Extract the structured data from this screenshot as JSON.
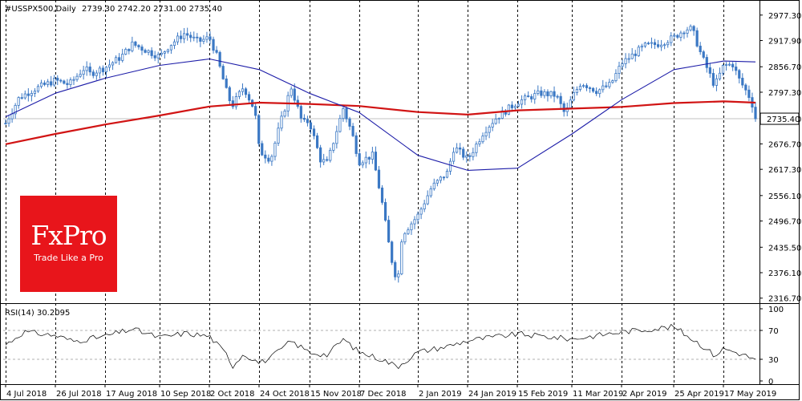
{
  "header": {
    "symbol": "#USSPX500,Daily",
    "ohlc": "2739.30 2742.20 2731.00 2735.40"
  },
  "logo": {
    "name": "FxPro",
    "tagline": "Trade Like a Pro"
  },
  "colors": {
    "candle": "#3b78c4",
    "ma_fast": "#1c1ca8",
    "ma_slow": "#d11414",
    "rsi": "#000000",
    "grid": "#000000",
    "logo": "#e8151b"
  },
  "chart_data": [
    {
      "type": "candlestick",
      "title": "#USSPX500,Daily",
      "ohlc_last": {
        "open": 2739.3,
        "high": 2742.2,
        "low": 2731.0,
        "close": 2735.4
      },
      "ylim": [
        2305,
        3005
      ],
      "y_ticks": [
        "2977.30",
        "2917.90",
        "2856.70",
        "2797.30",
        "2735.40",
        "2676.70",
        "2617.30",
        "2556.10",
        "2496.70",
        "2435.50",
        "2376.10",
        "2316.70"
      ],
      "current_price_label": "2735.40",
      "x_ticks": [
        "4 Jul 2018",
        "26 Jul 2018",
        "17 Aug 2018",
        "10 Sep 2018",
        "2 Oct 2018",
        "24 Oct 2018",
        "15 Nov 2018",
        "7 Dec 2018",
        "2 Jan 2019",
        "24 Jan 2019",
        "15 Feb 2019",
        "11 Mar 2019",
        "2 Apr 2019",
        "25 Apr 2019",
        "17 May 2019"
      ],
      "close_path": [
        [
          "4 Jul 2018",
          2725
        ],
        [
          "10 Jul 2018",
          2785
        ],
        [
          "17 Jul 2018",
          2805
        ],
        [
          "26 Jul 2018",
          2825
        ],
        [
          "1 Aug 2018",
          2815
        ],
        [
          "8 Aug 2018",
          2855
        ],
        [
          "10 Aug 2018",
          2840
        ],
        [
          "17 Aug 2018",
          2855
        ],
        [
          "24 Aug 2018",
          2880
        ],
        [
          "29 Aug 2018",
          2910
        ],
        [
          "4 Sep 2018",
          2895
        ],
        [
          "10 Sep 2018",
          2880
        ],
        [
          "14 Sep 2018",
          2905
        ],
        [
          "21 Sep 2018",
          2935
        ],
        [
          "27 Sep 2018",
          2915
        ],
        [
          "2 Oct 2018",
          2925
        ],
        [
          "5 Oct 2018",
          2885
        ],
        [
          "10 Oct 2018",
          2790
        ],
        [
          "12 Oct 2018",
          2765
        ],
        [
          "17 Oct 2018",
          2810
        ],
        [
          "22 Oct 2018",
          2755
        ],
        [
          "24 Oct 2018",
          2660
        ],
        [
          "29 Oct 2018",
          2640
        ],
        [
          "2 Nov 2018",
          2720
        ],
        [
          "7 Nov 2018",
          2810
        ],
        [
          "12 Nov 2018",
          2725
        ],
        [
          "15 Nov 2018",
          2730
        ],
        [
          "20 Nov 2018",
          2640
        ],
        [
          "23 Nov 2018",
          2632
        ],
        [
          "30 Nov 2018",
          2760
        ],
        [
          "4 Dec 2018",
          2700
        ],
        [
          "7 Dec 2018",
          2635
        ],
        [
          "13 Dec 2018",
          2650
        ],
        [
          "17 Dec 2018",
          2545
        ],
        [
          "21 Dec 2018",
          2415
        ],
        [
          "24 Dec 2018",
          2351
        ],
        [
          "26 Dec 2018",
          2465
        ],
        [
          "2 Jan 2019",
          2510
        ],
        [
          "8 Jan 2019",
          2575
        ],
        [
          "15 Jan 2019",
          2610
        ],
        [
          "18 Jan 2019",
          2670
        ],
        [
          "24 Jan 2019",
          2640
        ],
        [
          "31 Jan 2019",
          2705
        ],
        [
          "5 Feb 2019",
          2735
        ],
        [
          "15 Feb 2019",
          2775
        ],
        [
          "25 Feb 2019",
          2795
        ],
        [
          "4 Mar 2019",
          2790
        ],
        [
          "8 Mar 2019",
          2745
        ],
        [
          "11 Mar 2019",
          2785
        ],
        [
          "15 Mar 2019",
          2820
        ],
        [
          "22 Mar 2019",
          2800
        ],
        [
          "28 Mar 2019",
          2815
        ],
        [
          "2 Apr 2019",
          2865
        ],
        [
          "12 Apr 2019",
          2905
        ],
        [
          "18 Apr 2019",
          2910
        ],
        [
          "25 Apr 2019",
          2925
        ],
        [
          "30 Apr 2019",
          2945
        ],
        [
          "3 May 2019",
          2945
        ],
        [
          "7 May 2019",
          2885
        ],
        [
          "13 May 2019",
          2812
        ],
        [
          "17 May 2019",
          2860
        ],
        [
          "21 May 2019",
          2862
        ],
        [
          "24 May 2019",
          2825
        ],
        [
          "28 May 2019",
          2790
        ],
        [
          "30 May 2019",
          2763
        ],
        [
          "31 May 2019",
          2735
        ]
      ],
      "ma_fast_path": [
        [
          "4 Jul 2018",
          2740
        ],
        [
          "26 Jul 2018",
          2795
        ],
        [
          "17 Aug 2018",
          2830
        ],
        [
          "10 Sep 2018",
          2860
        ],
        [
          "2 Oct 2018",
          2875
        ],
        [
          "24 Oct 2018",
          2850
        ],
        [
          "15 Nov 2018",
          2795
        ],
        [
          "7 Dec 2018",
          2750
        ],
        [
          "2 Jan 2019",
          2650
        ],
        [
          "24 Jan 2019",
          2615
        ],
        [
          "15 Feb 2019",
          2620
        ],
        [
          "11 Mar 2019",
          2700
        ],
        [
          "2 Apr 2019",
          2780
        ],
        [
          "25 Apr 2019",
          2850
        ],
        [
          "17 May 2019",
          2870
        ],
        [
          "31 May 2019",
          2868
        ]
      ],
      "ma_slow_path": [
        [
          "4 Jul 2018",
          2676
        ],
        [
          "26 Jul 2018",
          2700
        ],
        [
          "17 Aug 2018",
          2722
        ],
        [
          "10 Sep 2018",
          2743
        ],
        [
          "2 Oct 2018",
          2764
        ],
        [
          "24 Oct 2018",
          2773
        ],
        [
          "15 Nov 2018",
          2770
        ],
        [
          "7 Dec 2018",
          2765
        ],
        [
          "2 Jan 2019",
          2751
        ],
        [
          "24 Jan 2019",
          2745
        ],
        [
          "15 Feb 2019",
          2755
        ],
        [
          "11 Mar 2019",
          2759
        ],
        [
          "2 Apr 2019",
          2763
        ],
        [
          "25 Apr 2019",
          2772
        ],
        [
          "17 May 2019",
          2776
        ],
        [
          "31 May 2019",
          2773
        ]
      ]
    },
    {
      "type": "line",
      "title": "RSI(14) 30.2095",
      "ylim": [
        0,
        100
      ],
      "y_ticks": [
        "100",
        "70",
        "30",
        "0"
      ],
      "levels": [
        70,
        30
      ],
      "series": [
        {
          "values": [
            [
              "4 Jul 2018",
              50
            ],
            [
              "12 Jul 2018",
              68
            ],
            [
              "26 Jul 2018",
              63
            ],
            [
              "3 Aug 2018",
              55
            ],
            [
              "17 Aug 2018",
              62
            ],
            [
              "29 Aug 2018",
              72
            ],
            [
              "10 Sep 2018",
              60
            ],
            [
              "21 Sep 2018",
              66
            ],
            [
              "2 Oct 2018",
              62
            ],
            [
              "10 Oct 2018",
              35
            ],
            [
              "12 Oct 2018",
              20
            ],
            [
              "17 Oct 2018",
              38
            ],
            [
              "24 Oct 2018",
              25
            ],
            [
              "29 Oct 2018",
              32
            ],
            [
              "7 Nov 2018",
              55
            ],
            [
              "15 Nov 2018",
              40
            ],
            [
              "23 Nov 2018",
              36
            ],
            [
              "30 Nov 2018",
              58
            ],
            [
              "7 Dec 2018",
              40
            ],
            [
              "17 Dec 2018",
              30
            ],
            [
              "24 Dec 2018",
              20
            ],
            [
              "2 Jan 2019",
              40
            ],
            [
              "15 Jan 2019",
              48
            ],
            [
              "24 Jan 2019",
              56
            ],
            [
              "15 Feb 2019",
              65
            ],
            [
              "11 Mar 2019",
              58
            ],
            [
              "2 Apr 2019",
              68
            ],
            [
              "25 Apr 2019",
              75
            ],
            [
              "7 May 2019",
              50
            ],
            [
              "13 May 2019",
              35
            ],
            [
              "17 May 2019",
              45
            ],
            [
              "24 May 2019",
              38
            ],
            [
              "31 May 2019",
              30
            ]
          ]
        }
      ]
    }
  ]
}
